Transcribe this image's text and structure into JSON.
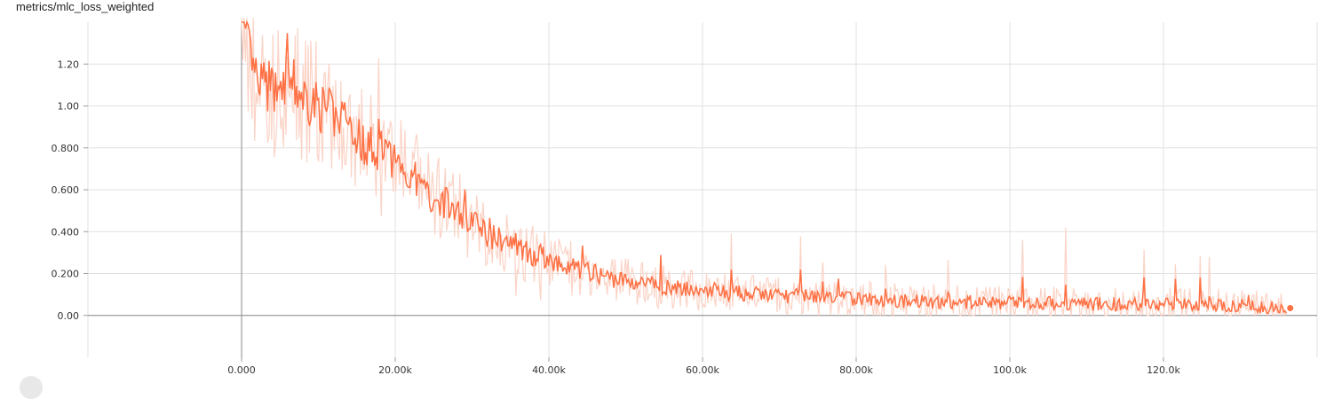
{
  "chart_data": {
    "type": "line",
    "title": "metrics/mlc_loss_weighted",
    "xlabel": "",
    "ylabel": "",
    "xlim": [
      -20000,
      140000
    ],
    "ylim": [
      -0.2,
      1.4
    ],
    "x_ticks": [
      {
        "value": 0,
        "label": "0.000"
      },
      {
        "value": 20000,
        "label": "20.00k"
      },
      {
        "value": 40000,
        "label": "40.00k"
      },
      {
        "value": 60000,
        "label": "60.00k"
      },
      {
        "value": 80000,
        "label": "80.00k"
      },
      {
        "value": 100000,
        "label": "100.0k"
      },
      {
        "value": 120000,
        "label": "120.0k"
      }
    ],
    "y_ticks": [
      {
        "value": 0,
        "label": "0.00"
      },
      {
        "value": 0.2,
        "label": "0.200"
      },
      {
        "value": 0.4,
        "label": "0.400"
      },
      {
        "value": 0.6,
        "label": "0.600"
      },
      {
        "value": 0.8,
        "label": "0.800"
      },
      {
        "value": 1.0,
        "label": "1.00"
      },
      {
        "value": 1.2,
        "label": "1.20"
      }
    ],
    "grid": true,
    "series": [
      {
        "color": "#ff7043",
        "raw_color": "#fbd3c6",
        "x": [
          0,
          2000,
          4000,
          6000,
          8000,
          10000,
          12000,
          14000,
          16000,
          18000,
          20000,
          22000,
          24000,
          26000,
          28000,
          30000,
          32000,
          34000,
          36000,
          38000,
          40000,
          42000,
          44000,
          46000,
          48000,
          50000,
          55000,
          60000,
          65000,
          70000,
          75000,
          80000,
          85000,
          90000,
          95000,
          100000,
          105000,
          110000,
          115000,
          120000,
          125000,
          130000,
          136000
        ],
        "values": [
          1.38,
          1.1,
          1.08,
          1.12,
          1.05,
          1.0,
          0.95,
          0.9,
          0.82,
          0.78,
          0.74,
          0.68,
          0.58,
          0.55,
          0.5,
          0.44,
          0.38,
          0.36,
          0.32,
          0.29,
          0.27,
          0.24,
          0.22,
          0.2,
          0.18,
          0.165,
          0.135,
          0.115,
          0.105,
          0.095,
          0.09,
          0.08,
          0.07,
          0.065,
          0.063,
          0.06,
          0.058,
          0.055,
          0.055,
          0.052,
          0.05,
          0.048,
          0.035
        ]
      }
    ]
  }
}
